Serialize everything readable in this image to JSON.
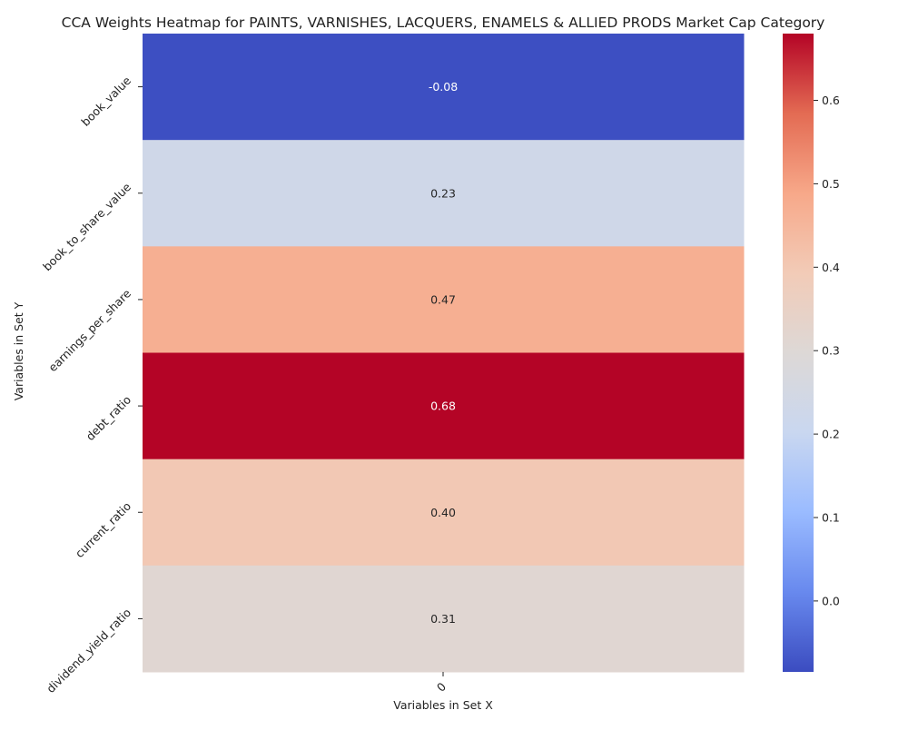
{
  "chart_data": {
    "type": "heatmap",
    "title": "CCA Weights Heatmap for PAINTS, VARNISHES, LACQUERS, ENAMELS & ALLIED PRODS Market Cap Category",
    "xlabel": "Variables in Set X",
    "ylabel": "Variables in Set Y",
    "x_categories": [
      "0"
    ],
    "y_categories": [
      "book_value",
      "book_to_share_value",
      "earnings_per_share",
      "debt_ratio",
      "current_ratio",
      "dividend_yield_ratio"
    ],
    "values": [
      [
        -0.08
      ],
      [
        0.23
      ],
      [
        0.47
      ],
      [
        0.68
      ],
      [
        0.4
      ],
      [
        0.31
      ]
    ],
    "value_labels": [
      "-0.08",
      "0.23",
      "0.47",
      "0.68",
      "0.40",
      "0.31"
    ],
    "colormap": "coolwarm",
    "colorbar": {
      "range": [
        -0.085,
        0.68
      ],
      "ticks": [
        0.0,
        0.1,
        0.2,
        0.3,
        0.4,
        0.5,
        0.6
      ],
      "tick_labels": [
        "0.0",
        "0.1",
        "0.2",
        "0.3",
        "0.4",
        "0.5",
        "0.6"
      ]
    },
    "colormap_stops": [
      "#3b4cc0",
      "#6889ee",
      "#9abbff",
      "#c9d7f0",
      "#ddd8d6",
      "#f2cbb7",
      "#f7a889",
      "#e36b53",
      "#b40426"
    ]
  }
}
